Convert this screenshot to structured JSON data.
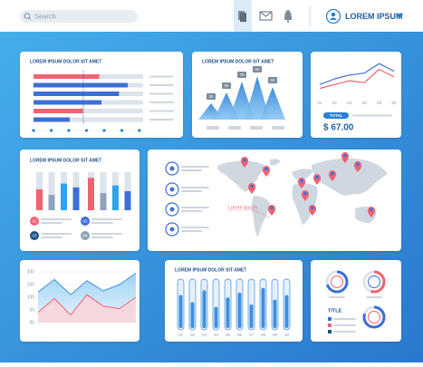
{
  "topbar": {
    "search_placeholder": "Search",
    "user": "LOREM IPSUM"
  },
  "hbar_panel": {
    "title": "LOREM IPSUM DOLOR SIT AMET",
    "xlim": [
      0,
      100
    ],
    "values": [
      60,
      86,
      78,
      62,
      45,
      33
    ],
    "colors": [
      "#f06370",
      "#3d6fd8",
      "#3d6fd8",
      "#3d6fd8",
      "#f06370",
      "#3d6fd8"
    ]
  },
  "mountain_panel": {
    "title": "LOREM IPSUM DOLOR SIT AMET",
    "ylim": [
      0,
      100
    ],
    "values": [
      30,
      50,
      70,
      80,
      60
    ]
  },
  "line_panel": {
    "categories": [
      "01",
      "02",
      "03",
      "04",
      "05",
      "06"
    ],
    "ylim": [
      0,
      100
    ],
    "series": [
      {
        "color": "#f06370",
        "values": [
          25,
          35,
          45,
          40,
          75,
          55
        ]
      },
      {
        "color": "#3d6fd8",
        "values": [
          35,
          50,
          60,
          65,
          90,
          70
        ]
      }
    ],
    "total_label": "TOTAL",
    "total": "$ 67.00"
  },
  "vbar_panel": {
    "title": "LOREM IPSUM DOLOR SIT AMET",
    "ylim": [
      0,
      100
    ],
    "values": [
      55,
      40,
      70,
      60,
      85,
      45,
      65,
      50
    ],
    "colors": [
      "#f06370",
      "#8fa3b8",
      "#2fa3e6",
      "#3d6fd8",
      "#f06370",
      "#8fa3b8",
      "#2fa3e6",
      "#3d6fd8"
    ],
    "legend": [
      "01",
      "02",
      "03",
      "04"
    ]
  },
  "map_panel": {
    "pin_label": "Lorem Ipsum"
  },
  "area_panel": {
    "ylim": [
      0,
      200
    ],
    "yticks": [
      200,
      150,
      100,
      50,
      {
        "value": 0,
        "label": "00"
      }
    ],
    "series": [
      {
        "color": "#3d8fe0",
        "values": [
          120,
          170,
          110,
          165,
          125,
          150,
          195
        ]
      },
      {
        "color": "#f06370",
        "values": [
          40,
          95,
          30,
          110,
          65,
          55,
          100
        ]
      }
    ]
  },
  "pill_panel": {
    "title": "LOREM IPSUM DOLOR SIT AMET",
    "ylim": [
      0,
      100
    ],
    "values": [
      70,
      55,
      80,
      45,
      65,
      75,
      50,
      85,
      60,
      70
    ],
    "categories": [
      "01",
      "02",
      "03",
      "04",
      "05",
      "06",
      "07",
      "08",
      "09",
      "10"
    ]
  },
  "donut_panel": {
    "title": "TITLE",
    "values": [
      70,
      55,
      80
    ]
  }
}
